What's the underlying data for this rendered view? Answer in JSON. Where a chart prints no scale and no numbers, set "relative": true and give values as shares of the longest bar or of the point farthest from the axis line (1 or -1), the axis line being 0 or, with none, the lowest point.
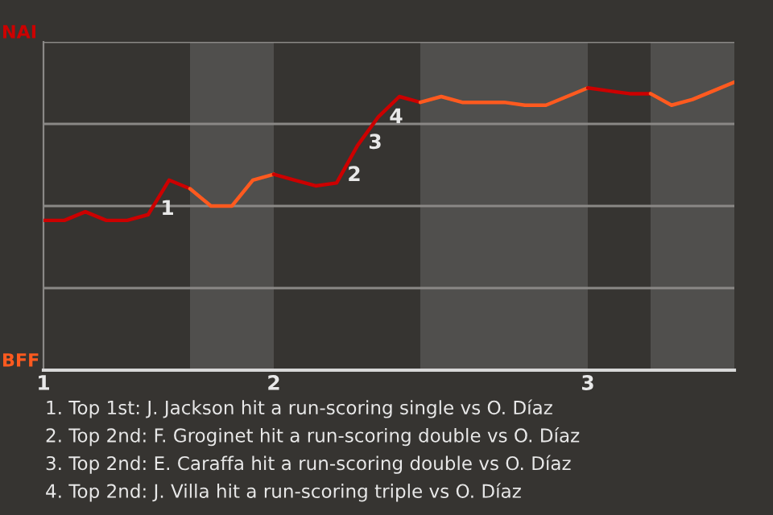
{
  "chart_data": {
    "type": "line",
    "relative": true,
    "categories": [
      "1",
      null,
      null,
      null,
      null,
      null,
      null,
      null,
      null,
      null,
      null,
      "2",
      null,
      null,
      null,
      null,
      null,
      null,
      null,
      null,
      null,
      null,
      null,
      null,
      null,
      null,
      "3",
      null,
      null,
      null,
      null,
      null,
      null,
      null
    ],
    "series": [
      {
        "color": "#cc0000",
        "values": [
          0.52,
          0.52,
          0.55,
          0.52,
          0.52,
          0.54,
          0.66,
          0.63,
          null,
          null,
          null,
          null,
          null,
          null,
          null,
          null,
          null,
          null,
          null,
          null,
          null,
          null,
          null,
          null,
          null,
          null,
          null,
          null,
          null,
          null,
          null,
          null,
          null,
          null
        ]
      },
      {
        "color": "#ff5a1f",
        "values": [
          null,
          null,
          null,
          null,
          null,
          null,
          null,
          0.63,
          0.57,
          0.57,
          0.66,
          0.68,
          null,
          null,
          null,
          null,
          null,
          null,
          null,
          null,
          null,
          null,
          null,
          null,
          null,
          null,
          null,
          null,
          null,
          null,
          null,
          null,
          null,
          null
        ]
      },
      {
        "color": "#cc0000",
        "values": [
          null,
          null,
          null,
          null,
          null,
          null,
          null,
          null,
          null,
          null,
          null,
          0.68,
          0.66,
          0.64,
          0.65,
          0.78,
          0.88,
          0.95,
          0.93,
          null,
          null,
          null,
          null,
          null,
          null,
          null,
          null,
          null,
          null,
          null,
          null,
          null,
          null,
          null
        ]
      },
      {
        "color": "#ff5a1f",
        "values": [
          null,
          null,
          null,
          null,
          null,
          null,
          null,
          null,
          null,
          null,
          null,
          null,
          null,
          null,
          null,
          null,
          null,
          null,
          0.93,
          0.95,
          0.93,
          0.93,
          0.93,
          0.92,
          0.92,
          0.95,
          0.98,
          null,
          null,
          null,
          null,
          null,
          null,
          null
        ]
      },
      {
        "color": "#cc0000",
        "values": [
          null,
          null,
          null,
          null,
          null,
          null,
          null,
          null,
          null,
          null,
          null,
          null,
          null,
          null,
          null,
          null,
          null,
          null,
          null,
          null,
          null,
          null,
          null,
          null,
          null,
          null,
          0.98,
          0.97,
          0.96,
          0.96,
          null,
          null,
          null,
          null
        ]
      },
      {
        "color": "#ff5a1f",
        "values": [
          null,
          null,
          null,
          null,
          null,
          null,
          null,
          null,
          null,
          null,
          null,
          null,
          null,
          null,
          null,
          null,
          null,
          null,
          null,
          null,
          null,
          null,
          null,
          null,
          null,
          null,
          null,
          null,
          null,
          0.96,
          0.92,
          0.94,
          0.97,
          1
        ]
      }
    ],
    "grid": "y",
    "annotations": [
      "1",
      "2",
      "3",
      "4",
      "NAI",
      "BFF",
      "1. Top 1st: J. Jackson hit a run-scoring single vs O. Díaz",
      "2. Top 2nd: F. Groginet hit a run-scoring double vs O. Díaz",
      "3. Top 2nd: E. Caraffa hit a run-scoring double vs O. Díaz",
      "4. Top 2nd: J. Villa hit a run-scoring triple vs O. Díaz"
    ]
  }
}
